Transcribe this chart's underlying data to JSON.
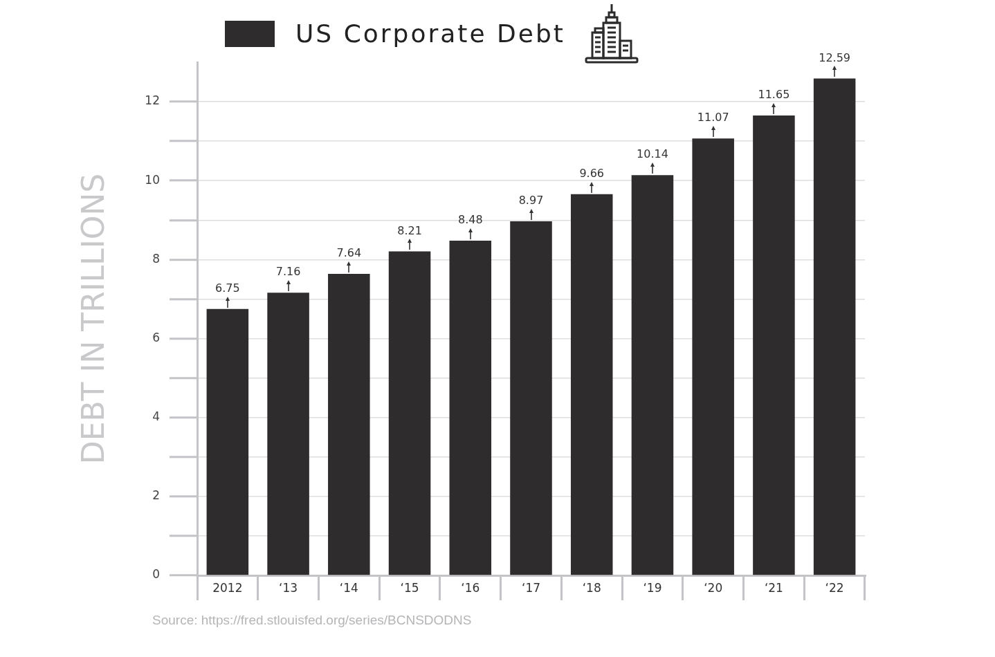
{
  "chart_data": {
    "type": "bar",
    "categories": [
      "2012",
      "‘13",
      "‘14",
      "‘15",
      "‘16",
      "‘17",
      "‘18",
      "‘19",
      "‘20",
      "‘21",
      "‘22"
    ],
    "series": [
      {
        "name": "US Corporate Debt",
        "color": "#2e2c2d",
        "values": [
          6.75,
          7.16,
          7.64,
          8.21,
          8.48,
          8.97,
          9.66,
          10.14,
          11.07,
          11.65,
          12.59
        ]
      }
    ],
    "ylabel": "DEBT IN TRILLIONS",
    "ylim": [
      0,
      13
    ],
    "yticks": [
      0,
      {
        "value": 1,
        "label": null
      },
      2,
      {
        "value": 3,
        "label": null
      },
      4,
      {
        "value": 5,
        "label": null
      },
      6,
      {
        "value": 7,
        "label": null
      },
      8,
      {
        "value": 9,
        "label": null
      },
      10,
      {
        "value": 11,
        "label": null
      },
      12
    ],
    "grid": "y",
    "legend": "top",
    "data_labels": true,
    "annotations": [
      "Source: https://fred.stlouisfed.org/series/BCNSDODNS"
    ]
  }
}
